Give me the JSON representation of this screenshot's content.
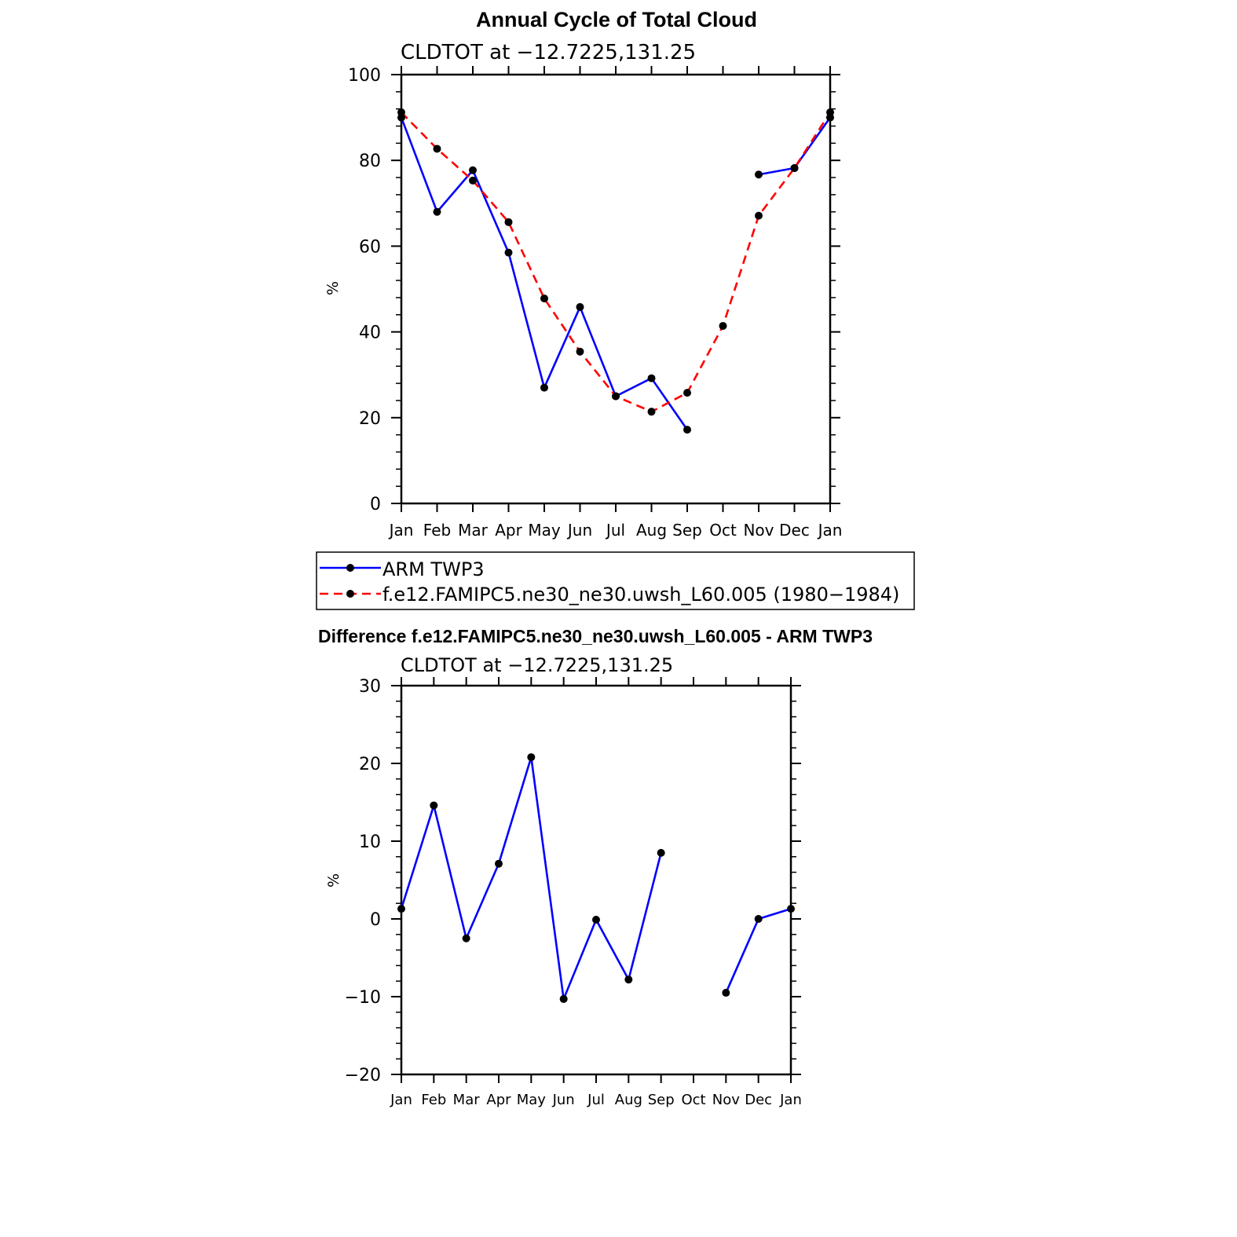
{
  "chart_data": [
    {
      "type": "line",
      "title": "Annual Cycle of Total Cloud",
      "subtitle": "CLDTOT at −12.7225,131.25",
      "xlabel": "",
      "ylabel": "%",
      "categories": [
        "Jan",
        "Feb",
        "Mar",
        "Apr",
        "May",
        "Jun",
        "Jul",
        "Aug",
        "Sep",
        "Oct",
        "Nov",
        "Dec",
        "Jan"
      ],
      "ylim": [
        0,
        100
      ],
      "yticks": [
        "0",
        "20",
        "40",
        "60",
        "80",
        "100"
      ],
      "ytick_values": [
        0,
        20,
        40,
        60,
        80,
        100
      ],
      "grid": false,
      "legend_placement": "below",
      "series": [
        {
          "name": "ARM TWP3",
          "color": "#0000ff",
          "style": "solid",
          "values": [
            90,
            68,
            77.7,
            58.5,
            27,
            45.8,
            25,
            29.2,
            17.2,
            null,
            76.7,
            78.2,
            90
          ]
        },
        {
          "name": "f.e12.FAMIPC5.ne30_ne30.uwsh_L60.005 (1980−1984)",
          "color": "#ff0000",
          "style": "dashed",
          "values": [
            91.2,
            82.7,
            75.3,
            65.6,
            47.8,
            35.4,
            25,
            21.4,
            25.8,
            41.4,
            67.1,
            78.2,
            91.2
          ]
        }
      ]
    },
    {
      "type": "line",
      "title": "Difference f.e12.FAMIPC5.ne30_ne30.uwsh_L60.005 - ARM TWP3",
      "subtitle": "CLDTOT at −12.7225,131.25",
      "xlabel": "",
      "ylabel": "%",
      "categories": [
        "Jan",
        "Feb",
        "Mar",
        "Apr",
        "May",
        "Jun",
        "Jul",
        "Aug",
        "Sep",
        "Oct",
        "Nov",
        "Dec",
        "Jan"
      ],
      "ylim": [
        -20,
        30
      ],
      "yticks": [
        "−20",
        "−10",
        "0",
        "10",
        "20",
        "30"
      ],
      "ytick_values": [
        -20,
        -10,
        0,
        10,
        20,
        30
      ],
      "grid": false,
      "series": [
        {
          "color": "#0000ff",
          "style": "solid",
          "values": [
            1.3,
            14.6,
            -2.5,
            7.1,
            20.8,
            -10.3,
            -0.1,
            -7.8,
            8.5,
            null,
            -9.5,
            0,
            1.3
          ]
        }
      ]
    }
  ]
}
